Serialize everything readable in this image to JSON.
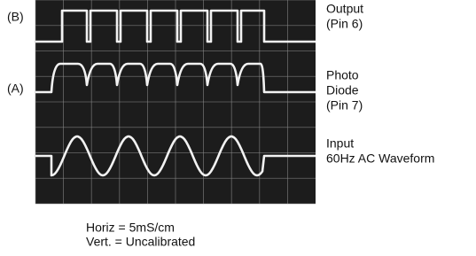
{
  "labels": {
    "b": "(B)",
    "a": "(A)"
  },
  "annotations": [
    {
      "lines": [
        "Output",
        "(Pin 6)"
      ]
    },
    {
      "lines": [
        "Photo",
        "Diode",
        "(Pin 7)"
      ]
    },
    {
      "lines": [
        "Input",
        "60Hz AC Waveform"
      ]
    }
  ],
  "caption": [
    "Horiz = 5mS/cm",
    "Vert. = Uncalibrated"
  ]
}
